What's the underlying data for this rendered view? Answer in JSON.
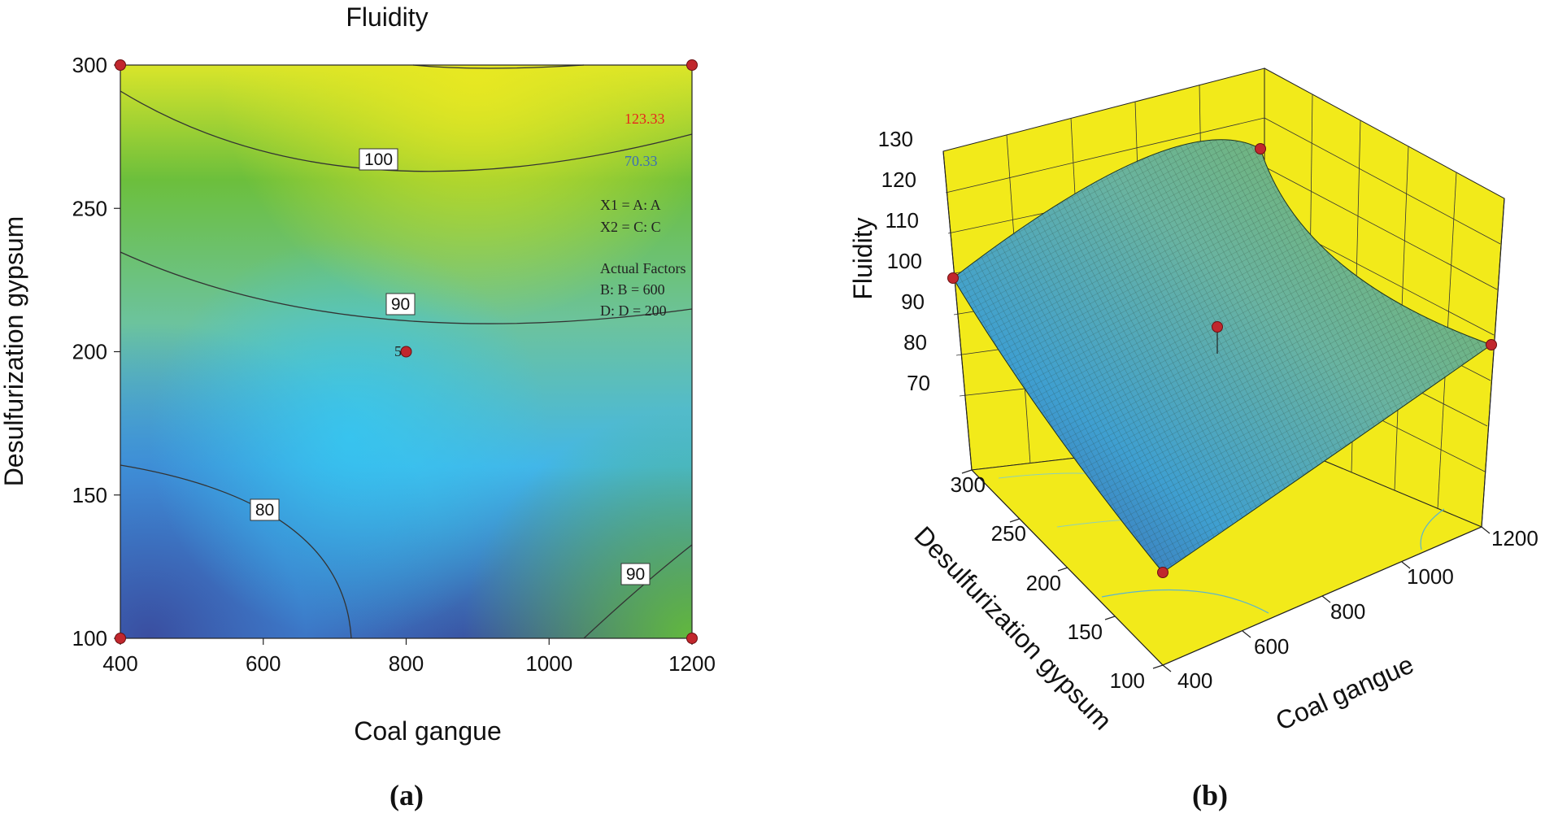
{
  "panels": {
    "a": {
      "label": "(a)",
      "title": "Fluidity",
      "xlabel": "Coal gangue",
      "ylabel": "Desulfurization gypsum",
      "xticks": [
        "400",
        "600",
        "800",
        "1000",
        "1200"
      ],
      "yticks": [
        "100",
        "150",
        "200",
        "250",
        "300"
      ],
      "legend": {
        "high_value": "123.33",
        "low_value": "70.33",
        "high_color": "#e8231d",
        "low_color": "#3b6fb6",
        "x1_text": "X1 = A: A",
        "x2_text": "X2 = C: C",
        "actual_factors_title": "Actual Factors",
        "factor_b": "B: B = 600",
        "factor_d": "D: D = 200"
      },
      "center_point_label": "5",
      "contour_labels": [
        "100",
        "90",
        "80",
        "90"
      ]
    },
    "b": {
      "label": "(b)",
      "zlabel": "Fluidity",
      "ylabel": "Desulfurization gypsum",
      "xlabel": "Coal gangue",
      "zticks": [
        "70",
        "80",
        "90",
        "100",
        "110",
        "120",
        "130"
      ],
      "yticks": [
        "100",
        "150",
        "200",
        "250",
        "300"
      ],
      "xticks": [
        "400",
        "600",
        "800",
        "1000",
        "1200"
      ]
    }
  },
  "colors": {
    "point": "#c1272d",
    "box_yellow": "#f2ea1a",
    "low": "#3a55a4",
    "mid": "#38c2ee",
    "high": "#6fbf3f",
    "top": "#e6e81e"
  },
  "chart_data": [
    {
      "type": "contour",
      "title": "Fluidity",
      "xlabel": "Coal gangue",
      "ylabel": "Desulfurization gypsum",
      "xlim": [
        400,
        1200
      ],
      "ylim": [
        100,
        300
      ],
      "xticks": [
        400,
        600,
        800,
        1000,
        1200
      ],
      "yticks": [
        100,
        150,
        200,
        250,
        300
      ],
      "contour_levels": [
        80,
        90,
        90,
        100
      ],
      "zrange": [
        70.33,
        123.33
      ],
      "design_points": [
        {
          "x": 400,
          "y": 100
        },
        {
          "x": 1200,
          "y": 100
        },
        {
          "x": 400,
          "y": 300
        },
        {
          "x": 1200,
          "y": 300
        },
        {
          "x": 800,
          "y": 200,
          "label": "5"
        }
      ]
    },
    {
      "type": "surface",
      "zlabel": "Fluidity",
      "xlabel": "Coal gangue",
      "ylabel": "Desulfurization gypsum",
      "xlim": [
        400,
        1200
      ],
      "ylim": [
        100,
        300
      ],
      "zlim": [
        70,
        130
      ],
      "corner_values": [
        {
          "x": 400,
          "y": 100,
          "z": 70
        },
        {
          "x": 1200,
          "y": 100,
          "z": 94
        },
        {
          "x": 400,
          "y": 300,
          "z": 105
        },
        {
          "x": 1200,
          "y": 300,
          "z": 123
        }
      ],
      "center_value": {
        "x": 800,
        "y": 200,
        "z": 88
      }
    }
  ]
}
